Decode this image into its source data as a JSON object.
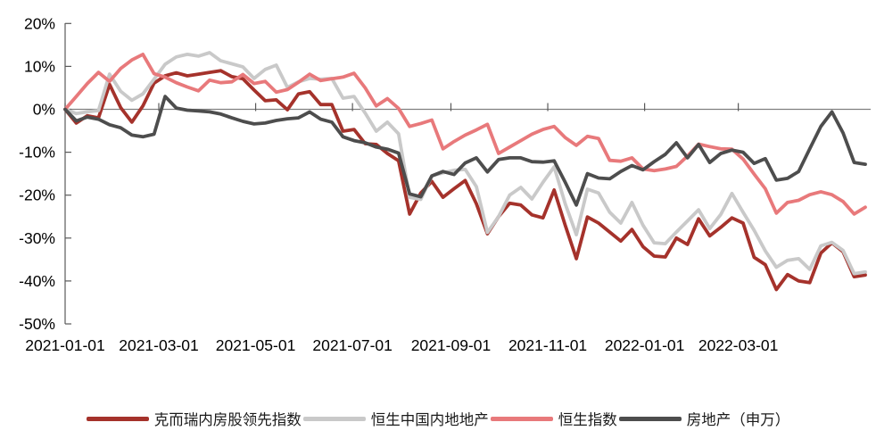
{
  "chart": {
    "type": "line",
    "title": "",
    "xlabel": "",
    "ylabel": "",
    "grid": false,
    "legend_position": "bottom",
    "ylim": [
      -50,
      20
    ],
    "y_ticks": [
      20,
      10,
      0,
      -10,
      -20,
      -30,
      -40,
      -50
    ],
    "y_tick_labels": [
      "20%",
      "10%",
      "0%",
      "-10%",
      "-20%",
      "-30%",
      "-40%",
      "-50%"
    ],
    "x_tick_labels": [
      "2021-01-01",
      "2021-03-01",
      "2021-05-01",
      "2021-07-01",
      "2021-09-01",
      "2021-11-01",
      "2022-01-01",
      "2022-03-01"
    ],
    "axis_color": "#595959",
    "zero_line_color": "#7f7f7f",
    "label_color": "#000000",
    "x": [
      "2021-01-01",
      "2021-01-08",
      "2021-01-15",
      "2021-01-22",
      "2021-01-29",
      "2021-02-05",
      "2021-02-12",
      "2021-02-19",
      "2021-02-26",
      "2021-03-05",
      "2021-03-12",
      "2021-03-19",
      "2021-03-26",
      "2021-04-02",
      "2021-04-09",
      "2021-04-16",
      "2021-04-23",
      "2021-04-30",
      "2021-05-07",
      "2021-05-14",
      "2021-05-21",
      "2021-05-28",
      "2021-06-04",
      "2021-06-11",
      "2021-06-18",
      "2021-06-25",
      "2021-07-02",
      "2021-07-09",
      "2021-07-16",
      "2021-07-23",
      "2021-07-30",
      "2021-08-06",
      "2021-08-13",
      "2021-08-20",
      "2021-08-27",
      "2021-09-03",
      "2021-09-10",
      "2021-09-17",
      "2021-09-24",
      "2021-10-01",
      "2021-10-08",
      "2021-10-15",
      "2021-10-22",
      "2021-10-29",
      "2021-11-05",
      "2021-11-12",
      "2021-11-19",
      "2021-11-26",
      "2021-12-03",
      "2021-12-10",
      "2021-12-17",
      "2021-12-24",
      "2021-12-31",
      "2022-01-07",
      "2022-01-14",
      "2022-01-21",
      "2022-01-28",
      "2022-02-04",
      "2022-02-11",
      "2022-02-18",
      "2022-02-25",
      "2022-03-04",
      "2022-03-11",
      "2022-03-18",
      "2022-03-25",
      "2022-04-01",
      "2022-04-08",
      "2022-04-15",
      "2022-04-22",
      "2022-04-29",
      "2022-05-06",
      "2022-05-13",
      "2022-05-20"
    ],
    "series": [
      {
        "name": "克而瑞内房股领先指数",
        "color": "#A5322B",
        "values": [
          0,
          -3.2,
          -1.5,
          -2.0,
          5.8,
          0.4,
          -3.0,
          0.8,
          6.1,
          7.8,
          8.5,
          7.8,
          8.2,
          8.6,
          9.0,
          7.6,
          7.1,
          4.5,
          2.0,
          2.2,
          -0.1,
          3.6,
          4.1,
          1.1,
          1.1,
          -5.1,
          -4.7,
          -8.0,
          -8.2,
          -10.3,
          -12.0,
          -24.4,
          -19.5,
          -16.8,
          -20.5,
          -18.5,
          -16.6,
          -22.0,
          -29.0,
          -25.0,
          -21.9,
          -22.3,
          -24.6,
          -25.3,
          -18.8,
          -27.0,
          -34.8,
          -25.1,
          -26.5,
          -28.6,
          -30.7,
          -28.0,
          -32.0,
          -34.2,
          -34.4,
          -30.0,
          -31.5,
          -25.5,
          -29.5,
          -27.5,
          -25.3,
          -26.5,
          -34.5,
          -36.2,
          -42.0,
          -38.5,
          -40.0,
          -40.4,
          -33.5,
          -31.1,
          -33.2,
          -39.0,
          -38.6
        ]
      },
      {
        "name": "恒生中国内地地产",
        "color": "#C9C9C9",
        "values": [
          0,
          -1.0,
          -0.6,
          -0.3,
          8.2,
          4.2,
          2.1,
          3.6,
          7.0,
          10.5,
          12.2,
          12.8,
          12.4,
          13.2,
          11.3,
          10.6,
          9.9,
          7.2,
          9.3,
          10.3,
          5.1,
          6.4,
          7.2,
          7.0,
          7.2,
          2.6,
          3.0,
          -0.9,
          -5.1,
          -3.0,
          -5.7,
          -20.5,
          -21.0,
          -15.5,
          -14.8,
          -14.2,
          -14.0,
          -18.0,
          -28.7,
          -25.0,
          -20.0,
          -18.2,
          -20.9,
          -17.0,
          -13.4,
          -22.0,
          -29.2,
          -18.6,
          -19.5,
          -24.0,
          -26.5,
          -21.7,
          -27.0,
          -31.1,
          -31.3,
          -28.6,
          -26.0,
          -23.4,
          -27.8,
          -24.5,
          -19.6,
          -24.0,
          -28.2,
          -33.0,
          -36.8,
          -35.2,
          -34.8,
          -37.3,
          -31.8,
          -31.0,
          -32.9,
          -38.3,
          -37.9
        ]
      },
      {
        "name": "恒生指数",
        "color": "#E8797B",
        "values": [
          0,
          3.0,
          6.0,
          8.6,
          6.5,
          9.5,
          11.5,
          12.8,
          8.3,
          7.5,
          6.2,
          5.2,
          4.3,
          6.8,
          6.2,
          6.4,
          8.1,
          6.0,
          6.5,
          4.0,
          4.6,
          6.3,
          8.2,
          6.7,
          7.1,
          7.5,
          8.4,
          5.0,
          0.8,
          2.5,
          0.2,
          -4.0,
          -3.3,
          -2.5,
          -9.2,
          -7.5,
          -6.0,
          -4.8,
          -3.5,
          -10.3,
          -8.8,
          -7.3,
          -5.8,
          -4.7,
          -4.0,
          -6.6,
          -8.4,
          -6.3,
          -6.8,
          -11.9,
          -12.1,
          -11.3,
          -13.9,
          -14.3,
          -13.9,
          -13.3,
          -10.9,
          -8.1,
          -8.7,
          -9.2,
          -9.3,
          -11.6,
          -15.1,
          -18.5,
          -24.2,
          -21.7,
          -21.2,
          -19.9,
          -19.2,
          -19.9,
          -21.5,
          -24.4,
          -22.8
        ]
      },
      {
        "name": "房地产（申万）",
        "color": "#4D4D4D",
        "values": [
          0,
          -2.7,
          -1.8,
          -2.3,
          -3.6,
          -4.3,
          -6.0,
          -6.4,
          -5.8,
          3.0,
          0.3,
          -0.2,
          -0.4,
          -0.6,
          -1.1,
          -2.0,
          -2.8,
          -3.4,
          -3.2,
          -2.6,
          -2.2,
          -2.0,
          -0.6,
          -2.3,
          -3.0,
          -6.4,
          -7.3,
          -7.8,
          -8.8,
          -9.3,
          -10.2,
          -19.7,
          -20.4,
          -15.5,
          -14.5,
          -15.2,
          -12.5,
          -11.3,
          -14.6,
          -11.7,
          -11.3,
          -11.3,
          -12.2,
          -12.3,
          -12.0,
          -17.0,
          -22.3,
          -15.0,
          -16.0,
          -16.2,
          -14.5,
          -13.1,
          -14.1,
          -12.2,
          -10.5,
          -7.8,
          -11.3,
          -8.2,
          -12.4,
          -10.3,
          -9.5,
          -10.0,
          -12.6,
          -11.5,
          -16.5,
          -16.1,
          -14.5,
          -9.2,
          -4.0,
          -0.6,
          -5.5,
          -12.4,
          -12.8
        ]
      }
    ]
  }
}
